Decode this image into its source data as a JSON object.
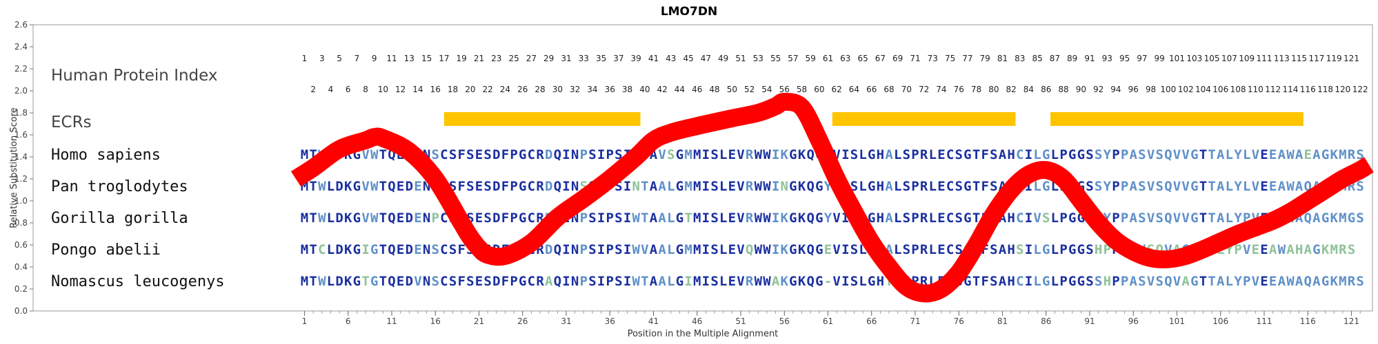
{
  "chart_data": {
    "type": "line",
    "title": "LMO7DN",
    "xlabel": "Position in the Multiple Alignment",
    "ylabel": "Relative Substitution Score",
    "xlim": [
      1,
      122
    ],
    "ylim": [
      0.0,
      2.6
    ],
    "yticks": [
      "0.0",
      "0.2",
      "0.4",
      "0.6",
      "0.8",
      "1.0",
      "1.2",
      "1.4",
      "1.6",
      "1.8",
      "2.0",
      "2.2",
      "2.4",
      "2.6"
    ],
    "xticks": [
      1,
      6,
      11,
      16,
      21,
      26,
      31,
      36,
      41,
      46,
      51,
      56,
      61,
      66,
      71,
      76,
      81,
      86,
      91,
      96,
      101,
      106,
      111,
      116,
      121
    ],
    "grid": false,
    "legend": "none",
    "row_labels": {
      "index": "Human Protein Index",
      "ecrs": "ECRs"
    },
    "human_index_odd": [
      "1",
      "3",
      "5",
      "7",
      "9",
      "11",
      "13",
      "15",
      "17",
      "19",
      "21",
      "23",
      "25",
      "27",
      "29",
      "31",
      "33",
      "35",
      "37",
      "39",
      "41",
      "43",
      "45",
      "47",
      "49",
      "51",
      "53",
      "55",
      "57",
      "59",
      "61",
      "63",
      "65",
      "67",
      "69",
      "71",
      "73",
      "75",
      "77",
      "79",
      "81",
      "83",
      "85",
      "87",
      "89",
      "91",
      "93",
      "95",
      "97",
      "99",
      "101",
      "103",
      "105",
      "107",
      "109",
      "111",
      "113",
      "115",
      "117",
      "119",
      "121"
    ],
    "human_index_even": [
      "2",
      "4",
      "6",
      "8",
      "10",
      "12",
      "14",
      "16",
      "18",
      "20",
      "22",
      "24",
      "26",
      "28",
      "30",
      "32",
      "34",
      "36",
      "38",
      "40",
      "42",
      "44",
      "46",
      "48",
      "50",
      "52",
      "54",
      "56",
      "58",
      "60",
      "62",
      "64",
      "66",
      "68",
      "70",
      "72",
      "74",
      "76",
      "78",
      "80",
      "82",
      "84",
      "86",
      "88",
      "90",
      "92",
      "94",
      "96",
      "98",
      "100",
      "102",
      "104",
      "106",
      "108",
      "110",
      "112",
      "114",
      "116",
      "118",
      "120",
      "122"
    ],
    "ecrs": [
      [
        17,
        39.5
      ],
      [
        61.5,
        82.5
      ],
      [
        86.5,
        115.5
      ]
    ],
    "species": [
      {
        "name": "Homo sapiens",
        "seq": "MTWLDKGVWTQEDENSCSFSESDFPGCRDQINPSIPSIWTAVSGMMISLEVRWWIKGKQGYVISLGHALSPRLECSGTFSAHCILGLPGGSSYPPASVSQVVGTTALYLVEEAWAEAGKMRS"
      },
      {
        "name": "Pan troglodytes",
        "seq": "MTWLDKGVWTQEDENSCSFSESDFPGCRDQINSSIPSINTAALGMMISLEVRWWINGKQGYVISLGHALSPRLECSGTFSAHCILGLPGGSSYPPASVSQVVGTTALYLVEEAWAQAGKMRS"
      },
      {
        "name": "Gorilla gorilla",
        "seq": "MTWLDKGVWTQEDENPCSFSESDFPGCRDQINPSIPSIWTAALGTMISLEVRWWIKGKQGYVISLGHALSPRLECSGTFSAHCIVSLPGGSSYPPASVSQVVGTTALYPVEEAWAQAGKMGS"
      },
      {
        "name": "Pongo abelii",
        "seq": "MTCLDKGIGTQEDENSCSFSESDFPGCRDQINPSIPSIWVAALGMMISLEVQWWIKGKQGEVISLGHALSPRLECSGTFSAHSILGLPGGSHPPASVSQVAGTTALYPVEEAWAHAGKMRS"
      },
      {
        "name": "Nomascus leucogenys",
        "seq": "MTWLDKGTGTQEDVNSCSFSESDFPGCRAQINPSIPSIWTAALGIMISLEVRWWAKGKQG-VISLGHTLSPRLECSGTFSAHCILGLPGGSSHPPASVSQVAGTTALYPVEEAWAQAGKMRS"
      }
    ],
    "series": [
      {
        "x": [
          0,
          2,
          5,
          8,
          9,
          10,
          13,
          16,
          19,
          20,
          21,
          22,
          24,
          27,
          30,
          33,
          36,
          39,
          41,
          43,
          46,
          50,
          53,
          55,
          56,
          58,
          60,
          62,
          64,
          66,
          68,
          70,
          72,
          74,
          76,
          78,
          80,
          82,
          84,
          86,
          88,
          90,
          92,
          94,
          96,
          98,
          100,
          102,
          104,
          106,
          108,
          110,
          112,
          114,
          116,
          118,
          120,
          122,
          123
        ],
        "y": [
          1.2,
          1.3,
          1.47,
          1.55,
          1.58,
          1.57,
          1.45,
          1.2,
          0.8,
          0.67,
          0.57,
          0.51,
          0.5,
          0.62,
          0.85,
          1.02,
          1.2,
          1.4,
          1.55,
          1.62,
          1.68,
          1.75,
          1.8,
          1.86,
          1.9,
          1.85,
          1.55,
          1.2,
          0.9,
          0.62,
          0.4,
          0.22,
          0.16,
          0.2,
          0.35,
          0.6,
          0.88,
          1.1,
          1.24,
          1.28,
          1.2,
          1.0,
          0.8,
          0.64,
          0.54,
          0.48,
          0.47,
          0.5,
          0.56,
          0.63,
          0.7,
          0.76,
          0.82,
          0.9,
          1.0,
          1.1,
          1.2,
          1.28,
          1.33
        ]
      }
    ],
    "colors": {
      "line": "#ff0000",
      "ecr": "#ffc400",
      "residue_strong": "#1a2fa0",
      "residue_weak": "#5f90c8",
      "residue_pale": "#8fc29a",
      "frame": "#9a9a9a"
    }
  }
}
